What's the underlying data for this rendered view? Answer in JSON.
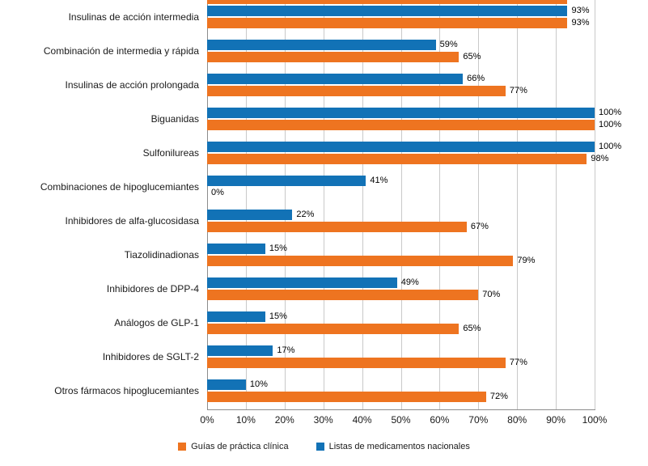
{
  "chart_data": {
    "type": "bar",
    "orientation": "horizontal",
    "title": "",
    "xlabel": "",
    "ylabel": "",
    "xlim": [
      0,
      100
    ],
    "grid": "vertical",
    "value_label_format": "{value}%",
    "categories": [
      "Insulinas de acción intermedia",
      "Combinación de intermedia y rápida",
      "Insulinas de acción prolongada",
      "Biguanidas",
      "Sulfonilureas",
      "Combinaciones de hipoglucemiantes",
      "Inhibidores de alfa-glucosidasa",
      "Tiazolidinadionas",
      "Inhibidores de DPP-4",
      "Análogos de GLP-1",
      "Inhibidores de SGLT-2",
      "Otros fármacos hipoglucemiantes"
    ],
    "series": [
      {
        "name": "Listas de medicamentos nacionales",
        "color": "#1272B6",
        "values": [
          93,
          59,
          66,
          100,
          100,
          41,
          22,
          15,
          49,
          15,
          17,
          10
        ]
      },
      {
        "name": "Guías de práctica clínica",
        "color": "#EE7420",
        "values": [
          93,
          65,
          77,
          100,
          98,
          0,
          67,
          79,
          70,
          65,
          77,
          72
        ]
      }
    ],
    "x_ticks": [
      "0%",
      "10%",
      "20%",
      "30%",
      "40%",
      "50%",
      "60%",
      "70%",
      "80%",
      "90%",
      "100%"
    ],
    "legend_position": "bottom-center",
    "legend": [
      {
        "label": "Guías de práctica clínica",
        "color": "#EE7420"
      },
      {
        "label": "Listas de medicamentos nacionales",
        "color": "#1272B6"
      }
    ],
    "partial_top_bar": {
      "series": "Guías de práctica clínica",
      "value": 93,
      "note": "bar cut off at top edge of image"
    }
  }
}
